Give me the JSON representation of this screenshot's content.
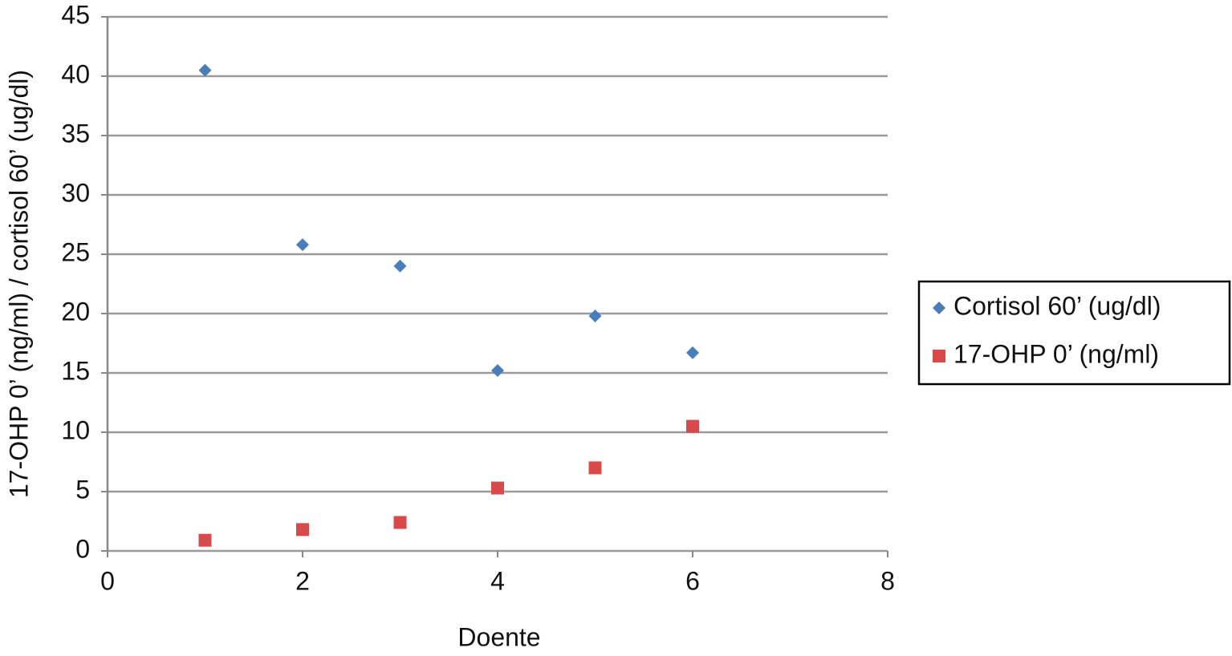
{
  "chart_data": {
    "type": "scatter",
    "x_label": "Doente",
    "y_label": "17-OHP 0’ (ng/ml) / cortisol 60’ (ug/dl)",
    "xlim": [
      0,
      8
    ],
    "xticks": [
      0,
      2,
      4,
      6,
      8
    ],
    "ylim": [
      0,
      45
    ],
    "yticks": [
      0,
      5,
      10,
      15,
      20,
      25,
      30,
      35,
      40,
      45
    ],
    "grid": true,
    "legend": "right",
    "series": [
      {
        "name": "Cortisol 60’ (ug/dl)",
        "color": "#4a7ebb",
        "marker": "diamond",
        "x": [
          1,
          2,
          3,
          4,
          5,
          6
        ],
        "values": [
          40.5,
          25.8,
          24.0,
          15.2,
          19.8,
          16.7
        ]
      },
      {
        "name": "17-OHP 0’ (ng/ml)",
        "color": "#d84a4a",
        "marker": "square",
        "x": [
          1,
          2,
          3,
          4,
          5,
          6
        ],
        "values": [
          0.9,
          1.8,
          2.4,
          5.3,
          7.0,
          10.5
        ]
      }
    ]
  }
}
